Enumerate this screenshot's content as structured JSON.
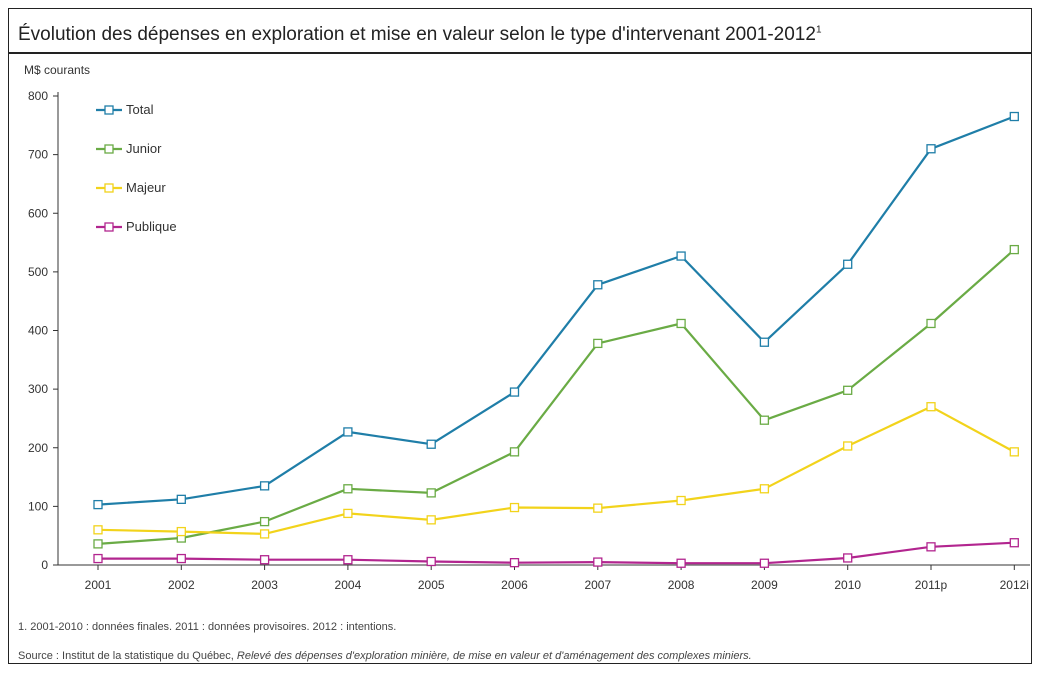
{
  "figure": {
    "title": "Évolution des dépenses en exploration et mise en valeur selon le type d'intervenant 2001-2012",
    "title_note": "1",
    "ylabel": "M$ courants",
    "footnote": "1. 2001-2010 : données finales. 2011 : données provisoires. 2012 : intentions.",
    "source_label": "Source : Institut de la statistique du Québec,",
    "source_title": "Relevé des dépenses d'exploration minière, de mise en valeur et d'aménagement des complexes miniers."
  },
  "chart_data": {
    "type": "line",
    "categories": [
      "2001",
      "2002",
      "2003",
      "2004",
      "2005",
      "2006",
      "2007",
      "2008",
      "2009",
      "2010",
      "2011p",
      "2012i"
    ],
    "ylim": [
      0,
      800
    ],
    "yticks": [
      0,
      100,
      200,
      300,
      400,
      500,
      600,
      700,
      800
    ],
    "grid": false,
    "legend_position": "top-left",
    "series": [
      {
        "name": "Total",
        "color": "#1f7ea8",
        "values": [
          103,
          112,
          135,
          227,
          206,
          295,
          478,
          527,
          380,
          513,
          710,
          765
        ]
      },
      {
        "name": "Junior",
        "color": "#6aab45",
        "values": [
          36,
          46,
          74,
          130,
          123,
          193,
          378,
          412,
          247,
          298,
          412,
          538
        ]
      },
      {
        "name": "Majeur",
        "color": "#f2d31b",
        "values": [
          60,
          57,
          53,
          88,
          77,
          98,
          97,
          110,
          130,
          203,
          270,
          193
        ]
      },
      {
        "name": "Publique",
        "color": "#b2258f",
        "values": [
          11,
          11,
          9,
          9,
          6,
          4,
          5,
          3,
          3,
          12,
          31,
          38
        ]
      }
    ]
  }
}
